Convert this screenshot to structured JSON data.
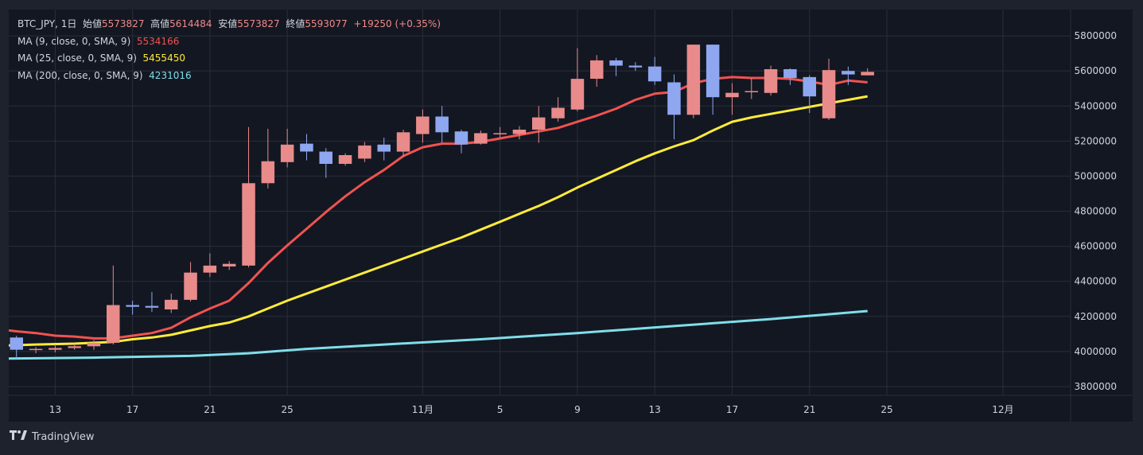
{
  "legend": {
    "symbol": "BTC_JPY, 1日",
    "open_label": "始値",
    "open_value": "5573827",
    "high_label": "高値",
    "high_value": "5614484",
    "low_label": "安値",
    "low_value": "5573827",
    "close_label": "終値",
    "close_value": "5593077",
    "change": "+19250 (+0.35%)",
    "ma": [
      {
        "label": "MA (9, close, 0, SMA, 9)",
        "value": "5534166",
        "color": "#ef5350"
      },
      {
        "label": "MA (25, close, 0, SMA, 9)",
        "value": "5455450",
        "color": "#ffeb3b"
      },
      {
        "label": "MA (200, close, 0, SMA, 9)",
        "value": "4231016",
        "color": "#80deea"
      }
    ]
  },
  "branding": {
    "name": "TradingView",
    "icon": "tradingview-logo-icon"
  },
  "colors": {
    "up": "#e88b8a",
    "down": "#8ea7f0",
    "grid": "#2a2e39",
    "text": "#d1d4dc"
  },
  "chart_data": {
    "type": "candlestick",
    "symbol": "BTC_JPY",
    "interval": "1日",
    "ylim": [
      3750000,
      5950000
    ],
    "y_ticks": [
      "3800000",
      "4000000",
      "4200000",
      "4400000",
      "4600000",
      "4800000",
      "5000000",
      "5200000",
      "5400000",
      "5600000",
      "5800000"
    ],
    "x_ticks": [
      {
        "day": 3,
        "label": "13"
      },
      {
        "day": 7,
        "label": "17"
      },
      {
        "day": 11,
        "label": "21"
      },
      {
        "day": 15,
        "label": "25"
      },
      {
        "day": 22,
        "label": "11月"
      },
      {
        "day": 26,
        "label": "5"
      },
      {
        "day": 30,
        "label": "9"
      },
      {
        "day": 34,
        "label": "13"
      },
      {
        "day": 38,
        "label": "17"
      },
      {
        "day": 42,
        "label": "21"
      },
      {
        "day": 46,
        "label": "25"
      },
      {
        "day": 52,
        "label": "12月"
      }
    ],
    "x_range": [
      0.6,
      55.5
    ],
    "candles": [
      {
        "day": 1,
        "o": 4080000,
        "h": 4090000,
        "l": 3960000,
        "c": 4010000
      },
      {
        "day": 2,
        "o": 4010000,
        "h": 4025000,
        "l": 3990000,
        "c": 4015000
      },
      {
        "day": 3,
        "o": 4010000,
        "h": 4040000,
        "l": 3995000,
        "c": 4020000
      },
      {
        "day": 4,
        "o": 4020000,
        "h": 4045000,
        "l": 4010000,
        "c": 4030000
      },
      {
        "day": 5,
        "o": 4030000,
        "h": 4065000,
        "l": 4010000,
        "c": 4050000
      },
      {
        "day": 6,
        "o": 4050000,
        "h": 4490000,
        "l": 4040000,
        "c": 4265000
      },
      {
        "day": 7,
        "o": 4265000,
        "h": 4290000,
        "l": 4210000,
        "c": 4255000
      },
      {
        "day": 8,
        "o": 4260000,
        "h": 4340000,
        "l": 4225000,
        "c": 4250000
      },
      {
        "day": 9,
        "o": 4240000,
        "h": 4330000,
        "l": 4220000,
        "c": 4295000
      },
      {
        "day": 10,
        "o": 4295000,
        "h": 4510000,
        "l": 4285000,
        "c": 4450000
      },
      {
        "day": 11,
        "o": 4450000,
        "h": 4560000,
        "l": 4425000,
        "c": 4490000
      },
      {
        "day": 12,
        "o": 4485000,
        "h": 4515000,
        "l": 4465000,
        "c": 4500000
      },
      {
        "day": 13,
        "o": 4490000,
        "h": 5280000,
        "l": 4480000,
        "c": 4960000
      },
      {
        "day": 14,
        "o": 4960000,
        "h": 5270000,
        "l": 4930000,
        "c": 5085000
      },
      {
        "day": 15,
        "o": 5080000,
        "h": 5270000,
        "l": 5050000,
        "c": 5180000
      },
      {
        "day": 16,
        "o": 5185000,
        "h": 5240000,
        "l": 5090000,
        "c": 5140000
      },
      {
        "day": 17,
        "o": 5140000,
        "h": 5160000,
        "l": 4990000,
        "c": 5070000
      },
      {
        "day": 18,
        "o": 5070000,
        "h": 5130000,
        "l": 5060000,
        "c": 5120000
      },
      {
        "day": 19,
        "o": 5100000,
        "h": 5195000,
        "l": 5080000,
        "c": 5175000
      },
      {
        "day": 20,
        "o": 5180000,
        "h": 5220000,
        "l": 5090000,
        "c": 5140000
      },
      {
        "day": 21,
        "o": 5140000,
        "h": 5265000,
        "l": 5110000,
        "c": 5250000
      },
      {
        "day": 22,
        "o": 5240000,
        "h": 5380000,
        "l": 5190000,
        "c": 5340000
      },
      {
        "day": 23,
        "o": 5340000,
        "h": 5400000,
        "l": 5190000,
        "c": 5250000
      },
      {
        "day": 24,
        "o": 5255000,
        "h": 5265000,
        "l": 5130000,
        "c": 5180000
      },
      {
        "day": 25,
        "o": 5185000,
        "h": 5260000,
        "l": 5180000,
        "c": 5245000
      },
      {
        "day": 26,
        "o": 5240000,
        "h": 5280000,
        "l": 5220000,
        "c": 5245000
      },
      {
        "day": 27,
        "o": 5240000,
        "h": 5285000,
        "l": 5210000,
        "c": 5265000
      },
      {
        "day": 28,
        "o": 5265000,
        "h": 5400000,
        "l": 5190000,
        "c": 5335000
      },
      {
        "day": 29,
        "o": 5330000,
        "h": 5450000,
        "l": 5310000,
        "c": 5390000
      },
      {
        "day": 30,
        "o": 5380000,
        "h": 5730000,
        "l": 5370000,
        "c": 5555000
      },
      {
        "day": 31,
        "o": 5555000,
        "h": 5690000,
        "l": 5510000,
        "c": 5660000
      },
      {
        "day": 32,
        "o": 5660000,
        "h": 5675000,
        "l": 5570000,
        "c": 5630000
      },
      {
        "day": 33,
        "o": 5630000,
        "h": 5650000,
        "l": 5600000,
        "c": 5620000
      },
      {
        "day": 34,
        "o": 5625000,
        "h": 5680000,
        "l": 5520000,
        "c": 5540000
      },
      {
        "day": 35,
        "o": 5535000,
        "h": 5580000,
        "l": 5210000,
        "c": 5350000
      },
      {
        "day": 36,
        "o": 5350000,
        "h": 5750000,
        "l": 5330000,
        "c": 5750000
      },
      {
        "day": 37,
        "o": 5750000,
        "h": 5750000,
        "l": 5350000,
        "c": 5450000
      },
      {
        "day": 38,
        "o": 5450000,
        "h": 5530000,
        "l": 5350000,
        "c": 5475000
      },
      {
        "day": 39,
        "o": 5480000,
        "h": 5560000,
        "l": 5440000,
        "c": 5485000
      },
      {
        "day": 40,
        "o": 5475000,
        "h": 5630000,
        "l": 5460000,
        "c": 5610000
      },
      {
        "day": 41,
        "o": 5610000,
        "h": 5615000,
        "l": 5520000,
        "c": 5560000
      },
      {
        "day": 42,
        "o": 5565000,
        "h": 5575000,
        "l": 5360000,
        "c": 5455000
      },
      {
        "day": 43,
        "o": 5330000,
        "h": 5670000,
        "l": 5320000,
        "c": 5605000
      },
      {
        "day": 44,
        "o": 5600000,
        "h": 5625000,
        "l": 5520000,
        "c": 5580000
      },
      {
        "day": 45,
        "o": 5575000,
        "h": 5615000,
        "l": 5575000,
        "c": 5595000
      }
    ],
    "series": [
      {
        "name": "MA (9, close, 0, SMA, 9)",
        "color": "#ef5350",
        "points": [
          [
            0.6,
            4120000
          ],
          [
            1,
            4115000
          ],
          [
            2,
            4105000
          ],
          [
            3,
            4090000
          ],
          [
            4,
            4085000
          ],
          [
            5,
            4075000
          ],
          [
            6,
            4075000
          ],
          [
            7,
            4090000
          ],
          [
            8,
            4105000
          ],
          [
            9,
            4135000
          ],
          [
            10,
            4195000
          ],
          [
            11,
            4245000
          ],
          [
            12,
            4290000
          ],
          [
            13,
            4390000
          ],
          [
            14,
            4505000
          ],
          [
            15,
            4605000
          ],
          [
            16,
            4700000
          ],
          [
            17,
            4795000
          ],
          [
            18,
            4885000
          ],
          [
            19,
            4965000
          ],
          [
            20,
            5035000
          ],
          [
            21,
            5115000
          ],
          [
            22,
            5165000
          ],
          [
            23,
            5185000
          ],
          [
            24,
            5185000
          ],
          [
            25,
            5195000
          ],
          [
            26,
            5215000
          ],
          [
            27,
            5235000
          ],
          [
            28,
            5255000
          ],
          [
            29,
            5275000
          ],
          [
            30,
            5310000
          ],
          [
            31,
            5345000
          ],
          [
            32,
            5385000
          ],
          [
            33,
            5435000
          ],
          [
            34,
            5470000
          ],
          [
            35,
            5480000
          ],
          [
            36,
            5530000
          ],
          [
            37,
            5555000
          ],
          [
            38,
            5565000
          ],
          [
            39,
            5560000
          ],
          [
            40,
            5560000
          ],
          [
            41,
            5555000
          ],
          [
            42,
            5540000
          ],
          [
            43,
            5520000
          ],
          [
            44,
            5545000
          ],
          [
            45,
            5535000
          ]
        ]
      },
      {
        "name": "MA (25, close, 0, SMA, 9)",
        "color": "#ffeb3b",
        "points": [
          [
            0.6,
            4035000
          ],
          [
            2,
            4040000
          ],
          [
            4,
            4045000
          ],
          [
            6,
            4055000
          ],
          [
            7,
            4070000
          ],
          [
            8,
            4080000
          ],
          [
            9,
            4095000
          ],
          [
            10,
            4120000
          ],
          [
            11,
            4145000
          ],
          [
            12,
            4165000
          ],
          [
            13,
            4200000
          ],
          [
            14,
            4245000
          ],
          [
            15,
            4290000
          ],
          [
            16,
            4330000
          ],
          [
            17,
            4370000
          ],
          [
            18,
            4410000
          ],
          [
            19,
            4450000
          ],
          [
            20,
            4490000
          ],
          [
            21,
            4530000
          ],
          [
            22,
            4570000
          ],
          [
            23,
            4610000
          ],
          [
            24,
            4650000
          ],
          [
            25,
            4695000
          ],
          [
            26,
            4740000
          ],
          [
            27,
            4785000
          ],
          [
            28,
            4830000
          ],
          [
            29,
            4880000
          ],
          [
            30,
            4935000
          ],
          [
            31,
            4985000
          ],
          [
            32,
            5035000
          ],
          [
            33,
            5085000
          ],
          [
            34,
            5130000
          ],
          [
            35,
            5170000
          ],
          [
            36,
            5205000
          ],
          [
            37,
            5260000
          ],
          [
            38,
            5310000
          ],
          [
            39,
            5335000
          ],
          [
            40,
            5355000
          ],
          [
            41,
            5375000
          ],
          [
            42,
            5395000
          ],
          [
            43,
            5415000
          ],
          [
            44,
            5435000
          ],
          [
            45,
            5455000
          ]
        ]
      },
      {
        "name": "MA (200, close, 0, SMA, 9)",
        "color": "#80deea",
        "points": [
          [
            0.6,
            3960000
          ],
          [
            5,
            3965000
          ],
          [
            10,
            3975000
          ],
          [
            13,
            3990000
          ],
          [
            16,
            4015000
          ],
          [
            20,
            4040000
          ],
          [
            25,
            4070000
          ],
          [
            30,
            4105000
          ],
          [
            35,
            4145000
          ],
          [
            40,
            4185000
          ],
          [
            45,
            4231000
          ]
        ]
      }
    ]
  }
}
